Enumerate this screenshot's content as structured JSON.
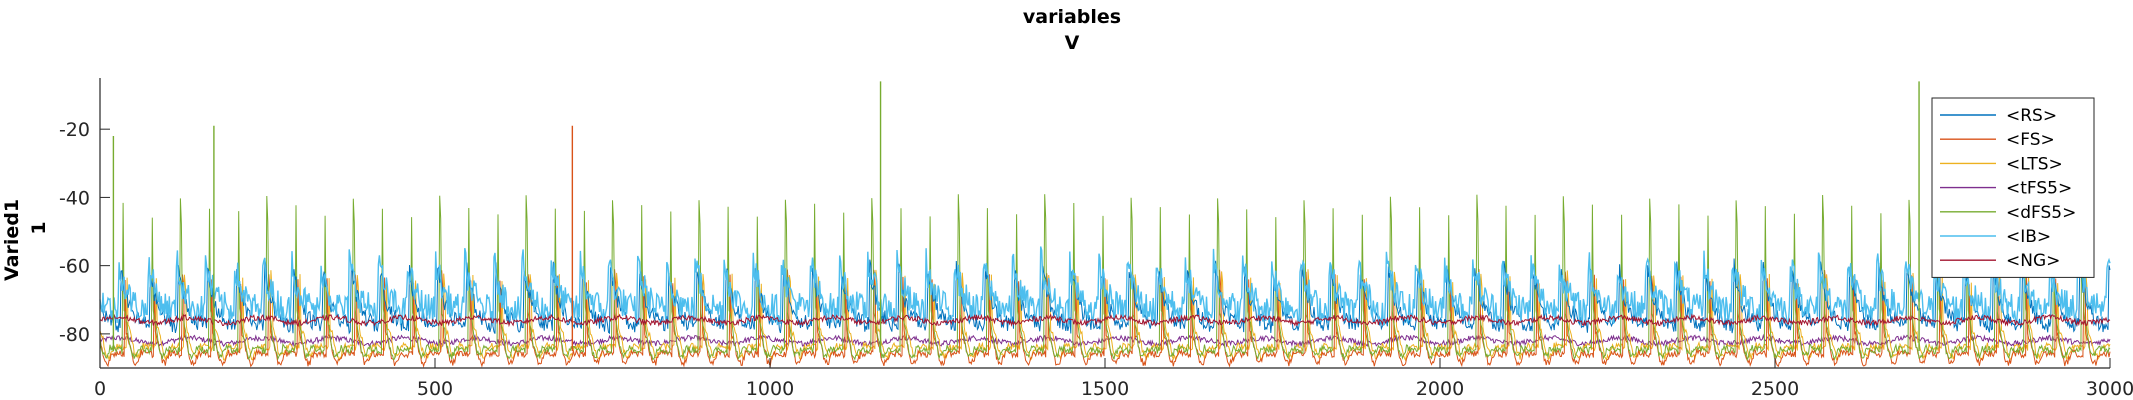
{
  "chart_data": {
    "type": "line",
    "title": "variables",
    "subtitle": "V",
    "ylabel": "Varied1",
    "ylabel2": "1",
    "xlabel": "",
    "xlim": [
      0,
      3000
    ],
    "ylim": [
      -90,
      -5
    ],
    "xticks": [
      0,
      500,
      1000,
      1500,
      2000,
      2500,
      3000
    ],
    "xtick_labels": [
      "0",
      "500",
      "1000",
      "1500",
      "2000",
      "2500",
      "3000"
    ],
    "yticks": [
      -20,
      -40,
      -60,
      -80
    ],
    "ytick_labels": [
      "-20",
      "-40",
      "-60",
      "-80"
    ],
    "grid": false,
    "legend_position": "top-right",
    "series": [
      {
        "name": "<RS>",
        "color": "#0072BD",
        "baseline": -78,
        "spike_every": 43,
        "spike_peak": -58
      },
      {
        "name": "<FS>",
        "color": "#D95319",
        "baseline": -86,
        "spike_every": 43,
        "spike_peak": -62
      },
      {
        "name": "<LTS>",
        "color": "#EDB120",
        "baseline": -84,
        "spike_every": 43,
        "spike_peak": -62
      },
      {
        "name": "<tFS5>",
        "color": "#7E2F8E",
        "baseline": -82,
        "spike_every": 43,
        "spike_peak": -80
      },
      {
        "name": "<dFS5>",
        "color": "#77AC30",
        "baseline": -85,
        "spike_every": 43,
        "spike_peak": -40
      },
      {
        "name": "<IB>",
        "color": "#4DBEEE",
        "baseline": -68,
        "spike_every": 43,
        "spike_peak": -52
      },
      {
        "name": "<NG>",
        "color": "#A2142F",
        "baseline": -76,
        "spike_every": 43,
        "spike_peak": -74
      }
    ],
    "highlight_peaks": [
      {
        "x": 20,
        "y": -22,
        "series": "<dFS5>"
      },
      {
        "x": 170,
        "y": -19,
        "series": "<dFS5>"
      },
      {
        "x": 705,
        "y": -19,
        "series": "<FS>"
      },
      {
        "x": 1165,
        "y": -6,
        "series": "<dFS5>"
      },
      {
        "x": 2715,
        "y": -6,
        "series": "<dFS5>"
      }
    ]
  },
  "legend": {
    "items": [
      {
        "label": "<RS>",
        "color": "#0072BD"
      },
      {
        "label": "<FS>",
        "color": "#D95319"
      },
      {
        "label": "<LTS>",
        "color": "#EDB120"
      },
      {
        "label": "<tFS5>",
        "color": "#7E2F8E"
      },
      {
        "label": "<dFS5>",
        "color": "#77AC30"
      },
      {
        "label": "<IB>",
        "color": "#4DBEEE"
      },
      {
        "label": "<NG>",
        "color": "#A2142F"
      }
    ]
  }
}
